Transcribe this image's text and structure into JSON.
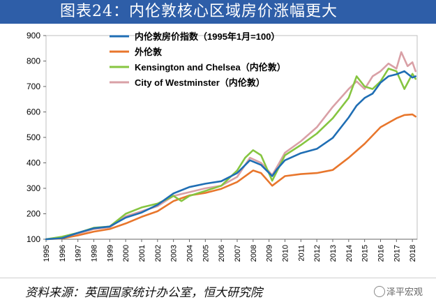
{
  "title": "图表24：内伦敦核心区域房价涨幅更大",
  "source": "资料来源：英国国家统计办公室，恒大研究院",
  "watermark": "泽平宏观",
  "colors": {
    "inner_london": "#1f6eb4",
    "outer_london": "#e8762c",
    "kensington": "#86c540",
    "westminster": "#d9a0a6"
  },
  "chart_data": {
    "type": "line",
    "xlim": [
      1995,
      2018.3
    ],
    "ylim": [
      100,
      900
    ],
    "yticks": [
      100,
      200,
      300,
      400,
      500,
      600,
      700,
      800,
      900
    ],
    "xticks": [
      "1995",
      "1996",
      "1997",
      "1998",
      "1999",
      "2000",
      "2001",
      "2002",
      "2003",
      "2004",
      "2005",
      "2006",
      "2007",
      "2008",
      "2009",
      "2010",
      "2011",
      "2012",
      "2013",
      "2014",
      "2015",
      "2016",
      "2017",
      "2018"
    ],
    "series": [
      {
        "name": "内伦敦房价指数（1995年1月=100）",
        "color_key": "inner_london",
        "x": [
          1995,
          1996,
          1997,
          1998,
          1999,
          2000,
          2001,
          2002,
          2003,
          2004,
          2005,
          2006,
          2007,
          2007.8,
          2008.5,
          2009.2,
          2009.5,
          2010,
          2011,
          2012,
          2013,
          2014,
          2014.5,
          2015,
          2015.5,
          2016,
          2016.5,
          2017,
          2017.5,
          2018,
          2018.2
        ],
        "y": [
          100,
          104,
          125,
          143,
          150,
          185,
          205,
          235,
          280,
          305,
          318,
          328,
          360,
          410,
          392,
          348,
          375,
          410,
          438,
          455,
          498,
          578,
          625,
          655,
          672,
          715,
          740,
          748,
          760,
          735,
          740
        ]
      },
      {
        "name": "外伦敦",
        "color_key": "outer_london",
        "x": [
          1995,
          1996,
          1997,
          1998,
          1999,
          2000,
          2001,
          2002,
          2003,
          2004,
          2005,
          2006,
          2007,
          2008,
          2008.5,
          2009.2,
          2010,
          2011,
          2012,
          2013,
          2014,
          2015,
          2016,
          2017,
          2017.5,
          2018,
          2018.2
        ],
        "y": [
          100,
          103,
          115,
          130,
          140,
          162,
          188,
          210,
          250,
          272,
          282,
          298,
          325,
          370,
          360,
          310,
          348,
          356,
          360,
          372,
          420,
          475,
          540,
          575,
          588,
          590,
          582
        ]
      },
      {
        "name": "Kensington and Chelsea（内伦敦）",
        "color_key": "kensington",
        "x": [
          1995,
          1996,
          1997,
          1998,
          1999,
          2000,
          2001,
          2002,
          2003,
          2003.5,
          2004,
          2005,
          2006,
          2007,
          2007.5,
          2008,
          2008.5,
          2009.2,
          2009.6,
          2010,
          2011,
          2012,
          2013,
          2014,
          2014.5,
          2015,
          2015.5,
          2016,
          2016.5,
          2017,
          2017.5,
          2018,
          2018.2
        ],
        "y": [
          100,
          110,
          125,
          145,
          150,
          200,
          225,
          240,
          270,
          250,
          270,
          290,
          310,
          370,
          420,
          450,
          430,
          330,
          380,
          430,
          470,
          515,
          575,
          655,
          740,
          700,
          690,
          720,
          770,
          760,
          690,
          750,
          730
        ]
      },
      {
        "name": "City of Westminster（内伦敦）",
        "color_key": "westminster",
        "x": [
          1995,
          1996,
          1997,
          1998,
          1999,
          2000,
          2001,
          2002,
          2003,
          2004,
          2005,
          2006,
          2007,
          2007.8,
          2008.5,
          2009.2,
          2009.6,
          2010,
          2011,
          2012,
          2013,
          2014,
          2014.5,
          2015,
          2015.5,
          2016,
          2016.5,
          2017,
          2017.3,
          2017.7,
          2018,
          2018.2
        ],
        "y": [
          100,
          108,
          122,
          140,
          147,
          190,
          210,
          230,
          270,
          285,
          300,
          310,
          345,
          420,
          400,
          352,
          395,
          440,
          485,
          540,
          620,
          690,
          720,
          690,
          740,
          760,
          790,
          770,
          835,
          780,
          795,
          760
        ]
      }
    ],
    "legend_position": "top-left"
  }
}
